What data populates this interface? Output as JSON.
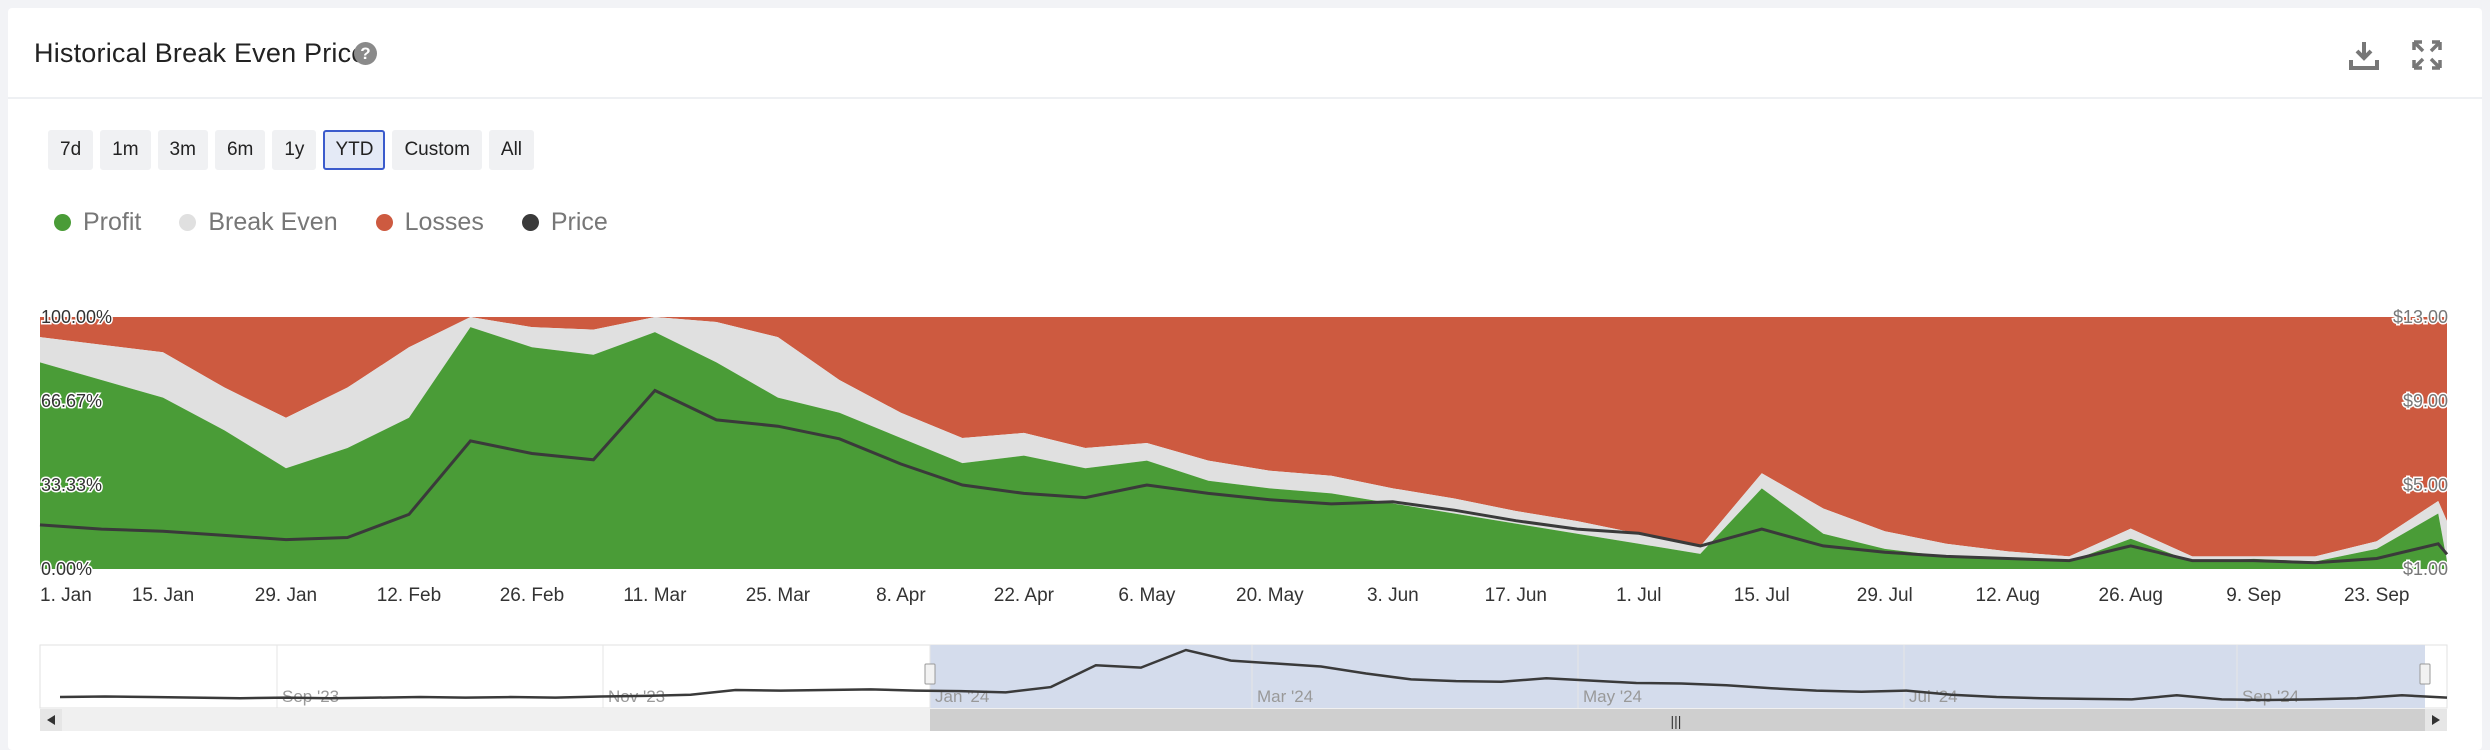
{
  "header": {
    "title": "Historical Break Even Price",
    "help_icon": "question-circle-icon",
    "download_icon": "download-icon",
    "fullscreen_icon": "expand-icon"
  },
  "range_selector": {
    "buttons": [
      "7d",
      "1m",
      "3m",
      "6m",
      "1y",
      "YTD",
      "Custom",
      "All"
    ],
    "selected": "YTD"
  },
  "legend": [
    {
      "label": "Profit",
      "color": "#4a9c37"
    },
    {
      "label": "Break Even",
      "color": "#e0e0e0"
    },
    {
      "label": "Losses",
      "color": "#cd5a40"
    },
    {
      "label": "Price",
      "color": "#3a3a3a"
    }
  ],
  "navigator": {
    "labels": [
      "Sep '23",
      "Nov '23",
      "Jan '24",
      "Mar '24",
      "May '24",
      "Jul '24",
      "Sep '24"
    ],
    "scroll_grip": "|||"
  },
  "chart_data": {
    "type": "area",
    "stacked_percent": true,
    "x_labels": [
      "1. Jan",
      "15. Jan",
      "29. Jan",
      "12. Feb",
      "26. Feb",
      "11. Mar",
      "25. Mar",
      "8. Apr",
      "22. Apr",
      "6. May",
      "20. May",
      "3. Jun",
      "17. Jun",
      "1. Jul",
      "15. Jul",
      "29. Jul",
      "12. Aug",
      "26. Aug",
      "9. Sep",
      "23. Sep"
    ],
    "y_left_ticks": [
      "0.00%",
      "33.33%",
      "66.67%",
      "100.00%"
    ],
    "y_right_ticks": [
      "$1.00",
      "$5.00",
      "$9.00",
      "$13.00"
    ],
    "y_left_range": [
      0,
      100
    ],
    "y_right_range": [
      1,
      13
    ],
    "dates": [
      "2024-01-01",
      "2024-01-08",
      "2024-01-15",
      "2024-01-22",
      "2024-01-29",
      "2024-02-05",
      "2024-02-12",
      "2024-02-19",
      "2024-02-26",
      "2024-03-04",
      "2024-03-11",
      "2024-03-18",
      "2024-03-25",
      "2024-04-01",
      "2024-04-08",
      "2024-04-15",
      "2024-04-22",
      "2024-04-29",
      "2024-05-06",
      "2024-05-13",
      "2024-05-20",
      "2024-05-27",
      "2024-06-03",
      "2024-06-10",
      "2024-06-17",
      "2024-06-24",
      "2024-07-01",
      "2024-07-08",
      "2024-07-15",
      "2024-07-22",
      "2024-07-29",
      "2024-08-05",
      "2024-08-12",
      "2024-08-19",
      "2024-08-26",
      "2024-09-02",
      "2024-09-09",
      "2024-09-16",
      "2024-09-23",
      "2024-09-30",
      "2024-10-01"
    ],
    "series": [
      {
        "name": "Profit",
        "color": "#4a9c37",
        "values": [
          82,
          75,
          68,
          55,
          40,
          48,
          60,
          96,
          88,
          85,
          94,
          82,
          68,
          62,
          52,
          42,
          45,
          40,
          43,
          35,
          32,
          30,
          26,
          22,
          18,
          14,
          10,
          6,
          32,
          14,
          8,
          5,
          4,
          3,
          12,
          3,
          4,
          3,
          8,
          22,
          3
        ]
      },
      {
        "name": "Break Even",
        "color": "#e0e0e0",
        "values": [
          10,
          14,
          18,
          17,
          20,
          24,
          28,
          4,
          8,
          10,
          6,
          16,
          24,
          13,
          10,
          10,
          9,
          8,
          7,
          8,
          7,
          7,
          6,
          6,
          5,
          5,
          4,
          3,
          6,
          10,
          7,
          5,
          3,
          2,
          4,
          2,
          1,
          2,
          3,
          5,
          16
        ]
      },
      {
        "name": "Losses",
        "color": "#cd5a40",
        "values": [
          8,
          11,
          14,
          28,
          40,
          28,
          12,
          0,
          4,
          5,
          0,
          2,
          8,
          25,
          38,
          48,
          46,
          52,
          50,
          57,
          61,
          63,
          68,
          72,
          77,
          81,
          86,
          91,
          62,
          76,
          85,
          90,
          93,
          95,
          84,
          95,
          95,
          95,
          89,
          73,
          81
        ]
      },
      {
        "name": "Price",
        "color": "#3a3a3a",
        "values": [
          3.1,
          2.9,
          2.8,
          2.6,
          2.4,
          2.5,
          3.6,
          7.1,
          6.5,
          6.2,
          9.5,
          8.1,
          7.8,
          7.2,
          6.0,
          5.0,
          4.6,
          4.4,
          5.0,
          4.6,
          4.3,
          4.1,
          4.2,
          3.8,
          3.3,
          2.9,
          2.7,
          2.1,
          2.9,
          2.1,
          1.8,
          1.6,
          1.5,
          1.4,
          2.1,
          1.4,
          1.4,
          1.3,
          1.5,
          2.2,
          1.7
        ]
      }
    ],
    "navigator_prices": [
      1.8,
      1.9,
      1.8,
      1.7,
      1.6,
      1.7,
      1.6,
      1.7,
      1.8,
      1.7,
      1.8,
      1.7,
      1.9,
      2.0,
      2.2,
      3.0,
      2.9,
      3.0,
      3.1,
      2.9,
      2.8,
      2.6,
      3.5,
      7.2,
      6.8,
      9.8,
      8.0,
      7.5,
      7.0,
      5.8,
      4.8,
      4.5,
      4.4,
      5.0,
      4.6,
      4.2,
      4.1,
      3.8,
      3.3,
      2.9,
      2.7,
      2.9,
      2.2,
      1.8,
      1.6,
      1.5,
      1.4,
      2.1,
      1.4,
      1.3,
      1.4,
      1.6,
      2.1,
      1.7
    ]
  }
}
